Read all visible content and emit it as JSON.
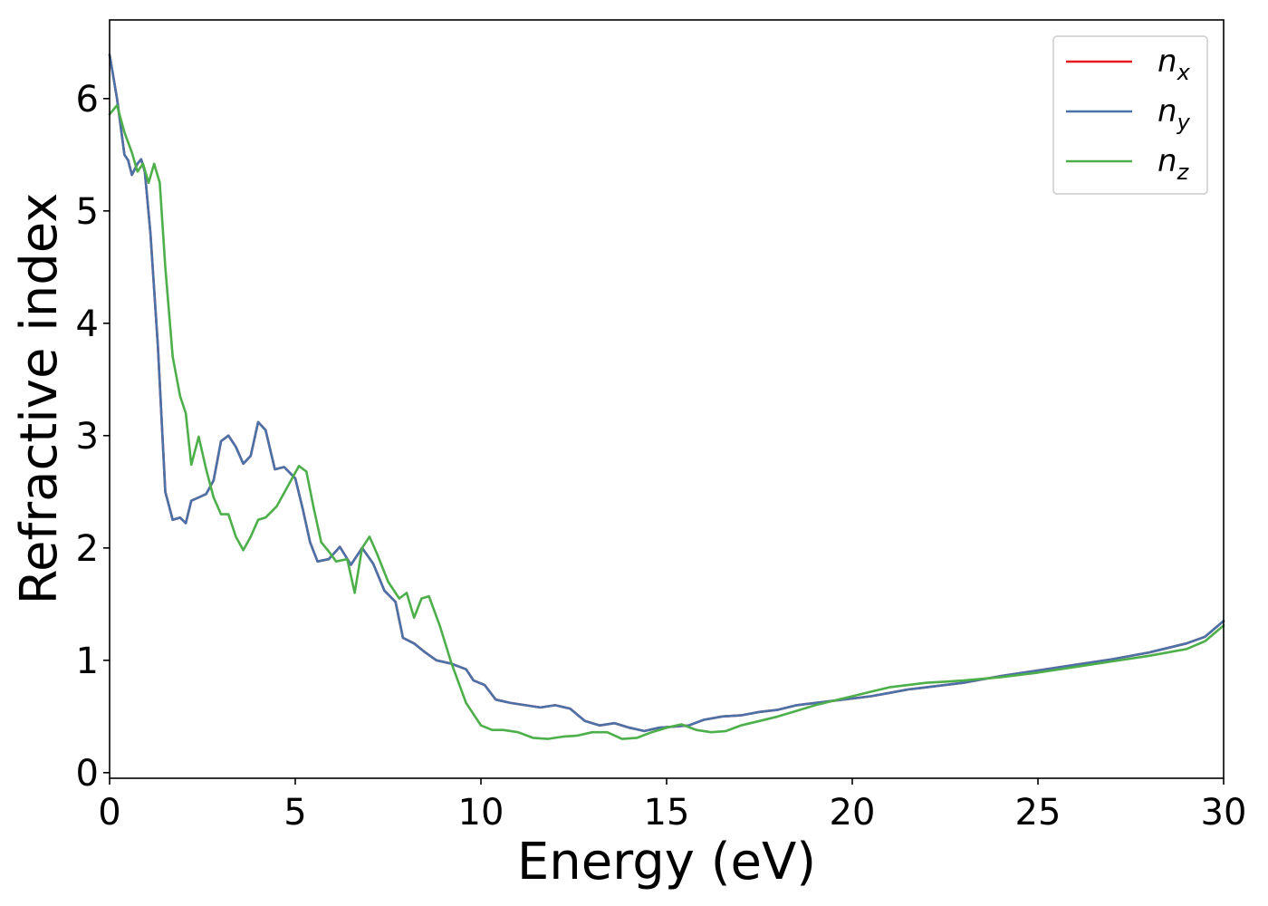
{
  "chart_data": {
    "type": "line",
    "xlabel": "Energy (eV)",
    "ylabel": "Refractive index",
    "xlim": [
      0,
      30
    ],
    "ylim": [
      -0.05,
      6.7
    ],
    "xticks": [
      0,
      5,
      10,
      15,
      20,
      25,
      30
    ],
    "yticks": [
      0,
      1,
      2,
      3,
      4,
      5,
      6
    ],
    "grid": false,
    "legend_position": "top-right",
    "series": [
      {
        "name": "n_x",
        "label_base": "n",
        "label_sub": "x",
        "color": "#e41a1c",
        "x": [
          0,
          0.2,
          0.4,
          0.5,
          0.6,
          0.75,
          0.85,
          0.95,
          1.1,
          1.3,
          1.5,
          1.7,
          1.9,
          2.05,
          2.2,
          2.4,
          2.6,
          2.8,
          3.0,
          3.2,
          3.4,
          3.6,
          3.8,
          4.0,
          4.2,
          4.45,
          4.7,
          5.0,
          5.2,
          5.4,
          5.6,
          5.9,
          6.2,
          6.5,
          6.8,
          7.1,
          7.4,
          7.7,
          7.9,
          8.2,
          8.5,
          8.8,
          9.2,
          9.6,
          9.8,
          10.1,
          10.4,
          10.8,
          11.2,
          11.6,
          12.0,
          12.4,
          12.8,
          13.2,
          13.6,
          14.0,
          14.4,
          14.8,
          15.2,
          15.6,
          16.0,
          16.5,
          17.0,
          17.5,
          18.0,
          18.5,
          19.0,
          19.5,
          20.0,
          20.5,
          21.0,
          21.5,
          22.0,
          22.5,
          23.0,
          23.5,
          24.0,
          25.0,
          26.0,
          27.0,
          28.0,
          29.0,
          29.5,
          30.0
        ],
        "y": [
          6.39,
          6.0,
          5.5,
          5.45,
          5.32,
          5.42,
          5.46,
          5.35,
          4.8,
          3.8,
          2.5,
          2.25,
          2.27,
          2.22,
          2.42,
          2.45,
          2.48,
          2.6,
          2.95,
          3.0,
          2.9,
          2.75,
          2.82,
          3.12,
          3.05,
          2.7,
          2.72,
          2.62,
          2.35,
          2.05,
          1.88,
          1.9,
          2.01,
          1.85,
          2.0,
          1.86,
          1.62,
          1.52,
          1.2,
          1.15,
          1.07,
          1.0,
          0.97,
          0.92,
          0.82,
          0.78,
          0.65,
          0.62,
          0.6,
          0.58,
          0.6,
          0.57,
          0.46,
          0.42,
          0.44,
          0.4,
          0.37,
          0.4,
          0.41,
          0.42,
          0.47,
          0.5,
          0.51,
          0.54,
          0.56,
          0.6,
          0.62,
          0.64,
          0.66,
          0.68,
          0.71,
          0.74,
          0.76,
          0.78,
          0.8,
          0.83,
          0.86,
          0.91,
          0.96,
          1.01,
          1.07,
          1.15,
          1.21,
          1.35
        ]
      },
      {
        "name": "n_y",
        "label_base": "n",
        "label_sub": "y",
        "color": "#4a72a8",
        "x": [
          0,
          0.2,
          0.4,
          0.5,
          0.6,
          0.75,
          0.85,
          0.95,
          1.1,
          1.3,
          1.5,
          1.7,
          1.9,
          2.05,
          2.2,
          2.4,
          2.6,
          2.8,
          3.0,
          3.2,
          3.4,
          3.6,
          3.8,
          4.0,
          4.2,
          4.45,
          4.7,
          5.0,
          5.2,
          5.4,
          5.6,
          5.9,
          6.2,
          6.5,
          6.8,
          7.1,
          7.4,
          7.7,
          7.9,
          8.2,
          8.5,
          8.8,
          9.2,
          9.6,
          9.8,
          10.1,
          10.4,
          10.8,
          11.2,
          11.6,
          12.0,
          12.4,
          12.8,
          13.2,
          13.6,
          14.0,
          14.4,
          14.8,
          15.2,
          15.6,
          16.0,
          16.5,
          17.0,
          17.5,
          18.0,
          18.5,
          19.0,
          19.5,
          20.0,
          20.5,
          21.0,
          21.5,
          22.0,
          22.5,
          23.0,
          23.5,
          24.0,
          25.0,
          26.0,
          27.0,
          28.0,
          29.0,
          29.5,
          30.0
        ],
        "y": [
          6.39,
          6.0,
          5.5,
          5.45,
          5.32,
          5.42,
          5.46,
          5.35,
          4.8,
          3.8,
          2.5,
          2.25,
          2.27,
          2.22,
          2.42,
          2.45,
          2.48,
          2.6,
          2.95,
          3.0,
          2.9,
          2.75,
          2.82,
          3.12,
          3.05,
          2.7,
          2.72,
          2.62,
          2.35,
          2.05,
          1.88,
          1.9,
          2.01,
          1.85,
          2.0,
          1.86,
          1.62,
          1.52,
          1.2,
          1.15,
          1.07,
          1.0,
          0.97,
          0.92,
          0.82,
          0.78,
          0.65,
          0.62,
          0.6,
          0.58,
          0.6,
          0.57,
          0.46,
          0.42,
          0.44,
          0.4,
          0.37,
          0.4,
          0.41,
          0.42,
          0.47,
          0.5,
          0.51,
          0.54,
          0.56,
          0.6,
          0.62,
          0.64,
          0.66,
          0.68,
          0.71,
          0.74,
          0.76,
          0.78,
          0.8,
          0.83,
          0.86,
          0.91,
          0.96,
          1.01,
          1.07,
          1.15,
          1.21,
          1.35
        ]
      },
      {
        "name": "n_z",
        "label_base": "n",
        "label_sub": "z",
        "color": "#4daf4a",
        "x": [
          0,
          0.2,
          0.4,
          0.6,
          0.75,
          0.9,
          1.05,
          1.2,
          1.35,
          1.5,
          1.7,
          1.9,
          2.05,
          2.2,
          2.4,
          2.6,
          2.8,
          3.0,
          3.2,
          3.4,
          3.6,
          3.8,
          4.0,
          4.2,
          4.5,
          4.8,
          5.1,
          5.3,
          5.5,
          5.7,
          5.9,
          6.1,
          6.4,
          6.6,
          6.8,
          7.0,
          7.2,
          7.5,
          7.8,
          8.0,
          8.2,
          8.4,
          8.6,
          8.9,
          9.2,
          9.6,
          10.0,
          10.3,
          10.6,
          11.0,
          11.4,
          11.8,
          12.2,
          12.6,
          13.0,
          13.4,
          13.8,
          14.2,
          14.6,
          15.0,
          15.4,
          15.8,
          16.2,
          16.6,
          17.0,
          17.5,
          18.0,
          18.5,
          19.0,
          19.5,
          20.0,
          20.5,
          21.0,
          21.5,
          22.0,
          22.5,
          23.0,
          24.0,
          25.0,
          26.0,
          27.0,
          28.0,
          29.0,
          29.5,
          30.0
        ],
        "y": [
          5.86,
          5.94,
          5.7,
          5.52,
          5.35,
          5.42,
          5.25,
          5.42,
          5.25,
          4.5,
          3.7,
          3.35,
          3.2,
          2.74,
          2.99,
          2.7,
          2.45,
          2.3,
          2.3,
          2.1,
          1.98,
          2.1,
          2.25,
          2.27,
          2.37,
          2.55,
          2.73,
          2.68,
          2.35,
          2.05,
          1.97,
          1.88,
          1.9,
          1.6,
          2.0,
          2.1,
          1.95,
          1.7,
          1.55,
          1.6,
          1.38,
          1.55,
          1.57,
          1.3,
          0.98,
          0.62,
          0.42,
          0.38,
          0.38,
          0.36,
          0.31,
          0.3,
          0.32,
          0.33,
          0.36,
          0.36,
          0.3,
          0.31,
          0.36,
          0.4,
          0.43,
          0.38,
          0.36,
          0.37,
          0.42,
          0.46,
          0.5,
          0.55,
          0.6,
          0.64,
          0.68,
          0.72,
          0.76,
          0.78,
          0.8,
          0.81,
          0.82,
          0.85,
          0.89,
          0.94,
          0.99,
          1.04,
          1.1,
          1.17,
          1.31
        ]
      }
    ]
  }
}
